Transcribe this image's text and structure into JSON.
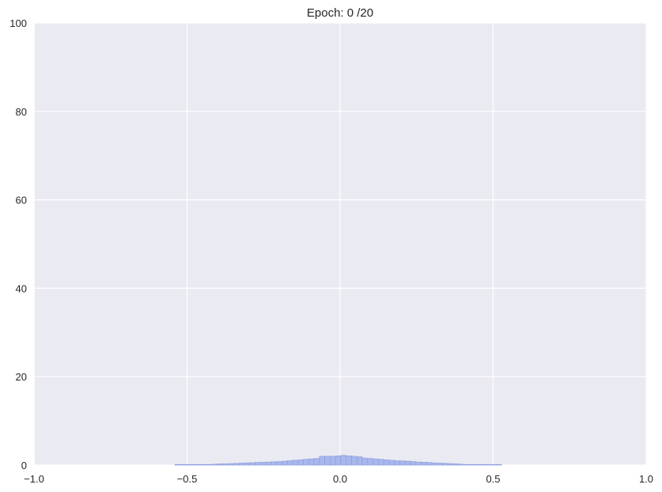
{
  "chart_data": {
    "type": "bar",
    "title": "Epoch: 0 /20",
    "xlabel": "",
    "ylabel": "",
    "xlim": [
      -1.0,
      1.0
    ],
    "ylim": [
      0,
      100
    ],
    "grid": true,
    "background_color": "#eaeaf2",
    "grid_color": "#ffffff",
    "bar_color": "#a8b8ee",
    "bar_edge_color": "#8a9ad8",
    "x_ticks": [
      -1.0,
      -0.5,
      0.0,
      0.5,
      1.0
    ],
    "x_tick_labels": [
      "−1.0",
      "−0.5",
      "0.0",
      "0.5",
      "1.0"
    ],
    "y_ticks": [
      0,
      20,
      40,
      60,
      80,
      100
    ],
    "y_tick_labels": [
      "0",
      "20",
      "40",
      "60",
      "80",
      "100"
    ],
    "bin_width": 0.0175,
    "bins": [
      {
        "x": -0.54,
        "value": 0.1
      },
      {
        "x": -0.5225,
        "value": 0.1
      },
      {
        "x": -0.505,
        "value": 0.1
      },
      {
        "x": -0.4875,
        "value": 0.1
      },
      {
        "x": -0.47,
        "value": 0.1
      },
      {
        "x": -0.4525,
        "value": 0.15
      },
      {
        "x": -0.435,
        "value": 0.15
      },
      {
        "x": -0.4175,
        "value": 0.2
      },
      {
        "x": -0.4,
        "value": 0.3
      },
      {
        "x": -0.3825,
        "value": 0.3
      },
      {
        "x": -0.365,
        "value": 0.35
      },
      {
        "x": -0.3475,
        "value": 0.4
      },
      {
        "x": -0.33,
        "value": 0.45
      },
      {
        "x": -0.3125,
        "value": 0.5
      },
      {
        "x": -0.295,
        "value": 0.55
      },
      {
        "x": -0.2775,
        "value": 0.6
      },
      {
        "x": -0.26,
        "value": 0.65
      },
      {
        "x": -0.2425,
        "value": 0.7
      },
      {
        "x": -0.225,
        "value": 0.75
      },
      {
        "x": -0.2075,
        "value": 0.8
      },
      {
        "x": -0.19,
        "value": 0.9
      },
      {
        "x": -0.1725,
        "value": 1.0
      },
      {
        "x": -0.155,
        "value": 1.1
      },
      {
        "x": -0.1375,
        "value": 1.2
      },
      {
        "x": -0.12,
        "value": 1.3
      },
      {
        "x": -0.1025,
        "value": 1.4
      },
      {
        "x": -0.085,
        "value": 1.5
      },
      {
        "x": -0.0675,
        "value": 2.0
      },
      {
        "x": -0.05,
        "value": 2.0
      },
      {
        "x": -0.0325,
        "value": 2.0
      },
      {
        "x": -0.015,
        "value": 2.1
      },
      {
        "x": 0.0025,
        "value": 2.2
      },
      {
        "x": 0.02,
        "value": 2.1
      },
      {
        "x": 0.0375,
        "value": 2.0
      },
      {
        "x": 0.055,
        "value": 1.9
      },
      {
        "x": 0.0725,
        "value": 1.6
      },
      {
        "x": 0.09,
        "value": 1.5
      },
      {
        "x": 0.1075,
        "value": 1.4
      },
      {
        "x": 0.125,
        "value": 1.3
      },
      {
        "x": 0.1425,
        "value": 1.2
      },
      {
        "x": 0.16,
        "value": 1.1
      },
      {
        "x": 0.1775,
        "value": 1.0
      },
      {
        "x": 0.195,
        "value": 0.95
      },
      {
        "x": 0.2125,
        "value": 0.9
      },
      {
        "x": 0.23,
        "value": 0.8
      },
      {
        "x": 0.2475,
        "value": 0.7
      },
      {
        "x": 0.265,
        "value": 0.65
      },
      {
        "x": 0.2825,
        "value": 0.6
      },
      {
        "x": 0.3,
        "value": 0.5
      },
      {
        "x": 0.3175,
        "value": 0.45
      },
      {
        "x": 0.335,
        "value": 0.4
      },
      {
        "x": 0.3525,
        "value": 0.35
      },
      {
        "x": 0.37,
        "value": 0.3
      },
      {
        "x": 0.3875,
        "value": 0.2
      },
      {
        "x": 0.405,
        "value": 0.15
      },
      {
        "x": 0.4225,
        "value": 0.15
      },
      {
        "x": 0.44,
        "value": 0.1
      },
      {
        "x": 0.4575,
        "value": 0.1
      },
      {
        "x": 0.475,
        "value": 0.1
      },
      {
        "x": 0.4925,
        "value": 0.1
      },
      {
        "x": 0.51,
        "value": 0.1
      }
    ]
  }
}
